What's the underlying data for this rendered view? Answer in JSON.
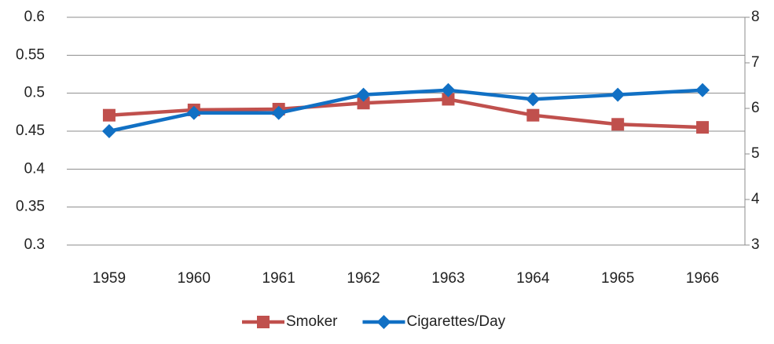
{
  "chart_data": {
    "type": "line",
    "categories": [
      "1959",
      "1960",
      "1961",
      "1962",
      "1963",
      "1964",
      "1965",
      "1966"
    ],
    "series": [
      {
        "name": "Smoker",
        "color": "#c0504d",
        "marker": "square",
        "values": [
          0.471,
          0.478,
          0.479,
          0.487,
          0.492,
          0.471,
          0.459,
          0.455
        ]
      },
      {
        "name": "Cigarettes/Day",
        "color": "#1170c4",
        "marker": "diamond",
        "axis": "y2",
        "values": [
          5.5,
          5.9,
          5.9,
          6.3,
          6.4,
          6.2,
          6.3,
          6.4
        ]
      }
    ],
    "ylim": [
      0.3,
      0.6
    ],
    "yticks": [
      0.3,
      0.35,
      0.4,
      0.45,
      0.5,
      0.55,
      0.6
    ],
    "y2lim": [
      3,
      8
    ],
    "y2ticks": [
      3,
      4,
      5,
      6,
      7,
      8
    ],
    "grid": true,
    "legend": "bottom"
  }
}
